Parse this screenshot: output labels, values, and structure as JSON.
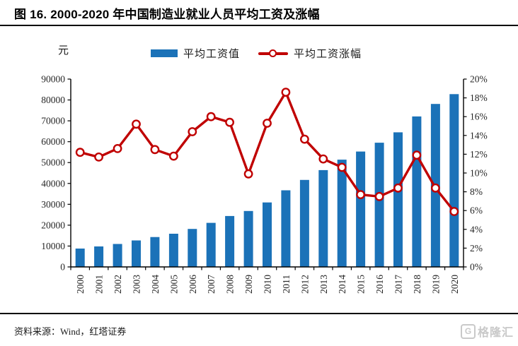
{
  "header": {
    "title": "图 16. 2000-2020 年中国制造业就业人员平均工资及涨幅"
  },
  "chart": {
    "unit_label": "元",
    "legend": [
      {
        "label": "平均工资值",
        "type": "bar",
        "color": "#1b72b8"
      },
      {
        "label": "平均工资涨幅",
        "type": "line",
        "color": "#c00000"
      }
    ]
  },
  "chart_data": {
    "type": "bar+line",
    "title": "2000-2020 年中国制造业就业人员平均工资及涨幅",
    "categories": [
      "2000",
      "2001",
      "2002",
      "2003",
      "2004",
      "2005",
      "2006",
      "2007",
      "2008",
      "2009",
      "2010",
      "2011",
      "2012",
      "2013",
      "2014",
      "2015",
      "2016",
      "2017",
      "2018",
      "2019",
      "2020"
    ],
    "series": [
      {
        "name": "平均工资值",
        "type": "bar",
        "axis": "left",
        "color": "#1b72b8",
        "values": [
          8800,
          9800,
          11000,
          12700,
          14300,
          15900,
          18200,
          21100,
          24400,
          26800,
          30900,
          36700,
          41700,
          46400,
          51400,
          55300,
          59500,
          64500,
          72100,
          78100,
          82800
        ]
      },
      {
        "name": "平均工资涨幅",
        "type": "line",
        "axis": "right",
        "color": "#c00000",
        "marker": "circle-open",
        "values": [
          12.2,
          11.7,
          12.6,
          15.2,
          12.5,
          11.8,
          14.4,
          16.0,
          15.4,
          9.9,
          15.3,
          18.6,
          13.6,
          11.5,
          10.6,
          7.7,
          7.5,
          8.4,
          11.9,
          8.4,
          5.9
        ]
      }
    ],
    "left_axis": {
      "label": "元",
      "min": 0,
      "max": 90000,
      "step": 10000,
      "ticks": [
        "0",
        "10000",
        "20000",
        "30000",
        "40000",
        "50000",
        "60000",
        "70000",
        "80000",
        "90000"
      ]
    },
    "right_axis": {
      "min": 0,
      "max": 20,
      "step": 2,
      "ticks": [
        "0%",
        "2%",
        "4%",
        "6%",
        "8%",
        "10%",
        "12%",
        "14%",
        "16%",
        "18%",
        "20%"
      ]
    },
    "grid": false,
    "legend_position": "top"
  },
  "footer": {
    "source": "资料来源：Wind，红塔证券",
    "watermark_text": "格隆汇",
    "watermark_icon": "G"
  }
}
